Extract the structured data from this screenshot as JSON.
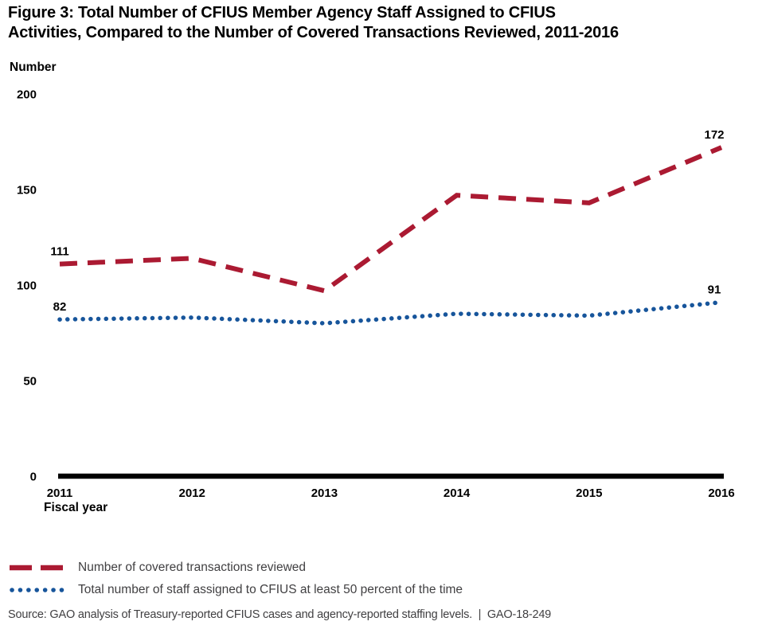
{
  "figure": {
    "title_line1": "Figure 3: Total Number of CFIUS Member Agency Staff Assigned to CFIUS",
    "title_line2": "Activities, Compared to the Number of Covered Transactions Reviewed, 2011-2016",
    "source": "Source: GAO analysis of Treasury-reported CFIUS cases and agency-reported staffing levels.  |  GAO-18-249"
  },
  "chart_data": {
    "type": "line",
    "title": "Figure 3: Total Number of CFIUS Member Agency Staff Assigned to CFIUS Activities, Compared to the Number of Covered Transactions Reviewed, 2011-2016",
    "xlabel": "Fiscal year",
    "ylabel": "Number",
    "categories": [
      "2011",
      "2012",
      "2013",
      "2014",
      "2015",
      "2016"
    ],
    "yticks": [
      0,
      50,
      100,
      150,
      200
    ],
    "ylim": [
      0,
      200
    ],
    "grid": false,
    "legend_position": "bottom-left",
    "series": [
      {
        "name": "Number of covered transactions reviewed",
        "color": "#ab1a32",
        "line_style": "dashed",
        "values": [
          111,
          114,
          97,
          147,
          143,
          172
        ],
        "labeled_points": [
          0,
          5
        ]
      },
      {
        "name": "Total number of staff assigned to CFIUS at least 50 percent of the time",
        "color": "#17559b",
        "line_style": "dotted",
        "values": [
          82,
          83,
          80,
          85,
          84,
          91
        ],
        "labeled_points": [
          0,
          5
        ]
      }
    ]
  }
}
